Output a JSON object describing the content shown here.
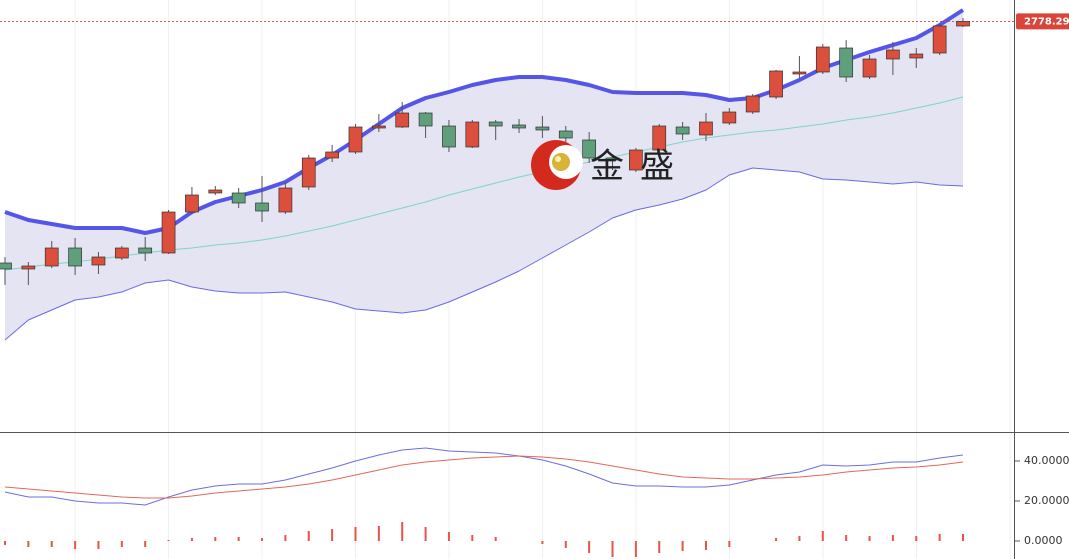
{
  "chart_data": [
    {
      "type": "candlestick",
      "ylim": [
        2573,
        2789
      ],
      "last_price": 2778.29,
      "last_price_color": "#d9453a",
      "up_color": "#dc4f3c",
      "down_color": "#5f9f7c",
      "open": [
        2657.5,
        2654.5,
        2656,
        2665,
        2656.5,
        2660,
        2665,
        2662.5,
        2683,
        2692.5,
        2692.5,
        2687.5,
        2683,
        2695.5,
        2710,
        2713,
        2725,
        2725.5,
        2732.5,
        2726,
        2715.5,
        2728,
        2726.5,
        2725.5,
        2723.5,
        2719,
        2710,
        2704,
        2714,
        2725.5,
        2721.5,
        2727.5,
        2733,
        2740.5,
        2752,
        2753,
        2765,
        2750.5,
        2759.5,
        2760,
        2762.5,
        2776
      ],
      "high": [
        2660.5,
        2658,
        2668.5,
        2670,
        2663,
        2666,
        2670.5,
        2684,
        2695.5,
        2696,
        2695,
        2701,
        2698,
        2711.5,
        2716.5,
        2727,
        2732,
        2738,
        2733,
        2729,
        2729,
        2729,
        2729.5,
        2731,
        2726,
        2723,
        2711.5,
        2715,
        2727,
        2728,
        2732.5,
        2735,
        2742,
        2754,
        2761,
        2767,
        2769,
        2761.5,
        2768,
        2765,
        2777,
        2780
      ],
      "low": [
        2646.5,
        2646.5,
        2655,
        2651.5,
        2652,
        2659,
        2658.5,
        2662,
        2682,
        2691.5,
        2685,
        2678,
        2682,
        2694,
        2708,
        2712,
        2723,
        2725,
        2720,
        2713,
        2715,
        2719,
        2722.5,
        2720,
        2711,
        2707.5,
        2704,
        2703,
        2713,
        2719,
        2718.5,
        2726.5,
        2732,
        2739.5,
        2750,
        2752,
        2748,
        2749.5,
        2751.5,
        2755,
        2761.5,
        2775.5
      ],
      "close": [
        2654.5,
        2656,
        2665,
        2656,
        2660.5,
        2665,
        2662.5,
        2683,
        2691.5,
        2694,
        2687.5,
        2683.5,
        2695,
        2710,
        2713,
        2725.5,
        2726,
        2732.5,
        2726,
        2715.5,
        2728,
        2726,
        2725,
        2724,
        2720,
        2710,
        2709,
        2714,
        2726,
        2722,
        2728,
        2733,
        2741,
        2753.5,
        2753,
        2765.5,
        2750.5,
        2759.5,
        2764,
        2762,
        2776,
        2778.29
      ],
      "band_fill": "#e4e4f2",
      "bands": [
        {
          "color": "#5555e8",
          "values": [
            2683,
            2679,
            2677,
            2675,
            2675,
            2675,
            2672.5,
            2675,
            2683,
            2688,
            2691,
            2694,
            2698,
            2705,
            2711.5,
            2719,
            2727,
            2735,
            2740,
            2743,
            2746.5,
            2749,
            2750.5,
            2750.5,
            2749,
            2746.5,
            2743,
            2742.5,
            2742.5,
            2742.5,
            2741.5,
            2739,
            2740,
            2744,
            2749,
            2755,
            2759,
            2763,
            2766.5,
            2770,
            2776.5,
            2784
          ]
        },
        {
          "color": "#7fd6c6",
          "values": [
            2654,
            2655.5,
            2657,
            2658,
            2659.5,
            2661,
            2662.5,
            2664,
            2665,
            2666.5,
            2667.5,
            2669,
            2671,
            2673.5,
            2676,
            2679,
            2682,
            2685,
            2688,
            2691.5,
            2694.5,
            2697.5,
            2700.5,
            2703,
            2705.5,
            2708,
            2710.5,
            2713,
            2715.5,
            2718,
            2720,
            2721.5,
            2723,
            2724,
            2725.5,
            2727,
            2729,
            2730.5,
            2732.5,
            2735,
            2737.5,
            2740.5
          ]
        },
        {
          "color": "#6a6ae6",
          "values": [
            2619,
            2629,
            2634,
            2639,
            2640.5,
            2643,
            2647.5,
            2649,
            2645.5,
            2643.5,
            2642.5,
            2642.5,
            2643,
            2640.5,
            2638,
            2634.5,
            2633.5,
            2632.5,
            2634,
            2638,
            2643,
            2648,
            2653.5,
            2660,
            2666.5,
            2673,
            2680,
            2684,
            2686.5,
            2689.5,
            2694,
            2701.5,
            2705,
            2704,
            2703,
            2699.5,
            2699,
            2698,
            2697,
            2698,
            2696.5,
            2696
          ]
        }
      ],
      "watermark": [
        "金",
        "盛"
      ]
    },
    {
      "type": "line",
      "ylim": [
        -9,
        54.5
      ],
      "yticks": [
        {
          "value": 40,
          "label": "40.0000"
        },
        {
          "value": 20,
          "label": "20.0000"
        },
        {
          "value": 0,
          "label": "0.0000"
        }
      ],
      "series": [
        {
          "color": "#6d6de0",
          "values": [
            24.5,
            22,
            22,
            20,
            19,
            19,
            18,
            22,
            25.5,
            27.5,
            28.5,
            28.5,
            30.5,
            33.5,
            36.5,
            40,
            43,
            45.5,
            46.5,
            45,
            44.5,
            44,
            42.5,
            40.5,
            37.5,
            33.5,
            29,
            27.5,
            27.5,
            27,
            27,
            28,
            30.5,
            33,
            34.5,
            38,
            37.5,
            38,
            39.5,
            39.5,
            41.5,
            43
          ]
        },
        {
          "color": "#e4675a",
          "values": [
            27,
            26,
            25,
            24,
            23,
            22,
            21.5,
            21.5,
            22.5,
            24,
            25,
            26,
            27,
            28.5,
            30.5,
            33,
            35.5,
            38,
            39.5,
            40.5,
            41.5,
            42,
            42.5,
            42,
            41,
            39.5,
            37.5,
            35.5,
            33.5,
            32,
            31.5,
            31,
            31,
            31.5,
            32,
            33,
            34.5,
            35.5,
            36.5,
            37,
            38,
            39.5
          ]
        }
      ],
      "bars": {
        "color": "#e9534a",
        "values": [
          -2,
          -3,
          -3,
          -4,
          -4,
          -3,
          -3,
          0.5,
          1.5,
          2,
          2,
          1.5,
          3,
          5,
          6,
          7,
          7.5,
          9.5,
          7,
          4.5,
          3,
          2,
          0,
          -1.5,
          -3.5,
          -6,
          -8,
          -8,
          -6,
          -5,
          -4.5,
          -3,
          0,
          1.5,
          2.5,
          5,
          3,
          2.5,
          3,
          2.5,
          3.5,
          3.5
        ]
      }
    }
  ]
}
